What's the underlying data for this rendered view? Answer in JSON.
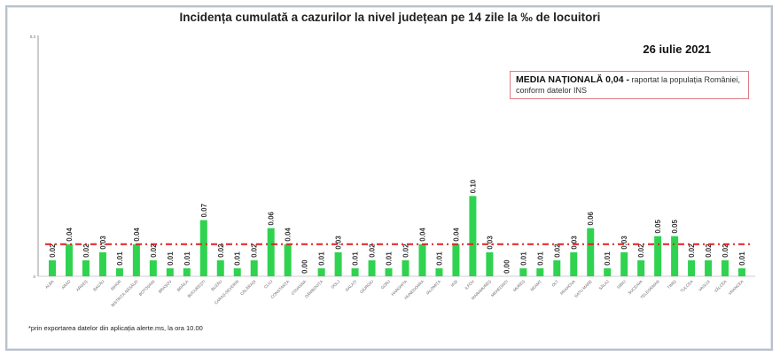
{
  "chart_data": {
    "type": "bar",
    "title": "Incidența cumulată a cazurilor la nivel județean pe 14 zile   la ‰ de locuitori",
    "date": "26 iulie 2021",
    "legend": {
      "bold": "MEDIA NAȚIONALĂ 0,04 -",
      "text": "raportat la populația României, conform datelor INS"
    },
    "footnote": "*prin exportarea datelor din aplicația alerte.ms, la ora 10.00",
    "xlabel": "",
    "ylabel": "",
    "ylim": [
      0,
      0.3
    ],
    "ytick_labels": [
      "0",
      "0,3"
    ],
    "reference_line": {
      "value": 0.04,
      "color": "#e02020",
      "label": "media națională"
    },
    "bar_color": "#2fd34f",
    "categories": [
      "Alba",
      "Arad",
      "Argeș",
      "Bacău",
      "Bihor",
      "Bistrița-Năsăud",
      "Botoșani",
      "Brașov",
      "Brăila",
      "București",
      "Buzău",
      "Caraș-Severin",
      "Călărași",
      "Cluj",
      "Constanța",
      "Covasna",
      "Dâmbovița",
      "Dolj",
      "Galați",
      "Giurgiu",
      "Gorj",
      "Harghita",
      "Hunedoara",
      "Ialomița",
      "Iași",
      "Ilfov",
      "Maramureș",
      "Mehedinți",
      "Mureș",
      "Neamț",
      "Olt",
      "Prahova",
      "Satu Mare",
      "Sălaj",
      "Sibiu",
      "Suceava",
      "Teleorman",
      "Timiș",
      "Tulcea",
      "Vaslui",
      "Vâlcea",
      "Vrancea"
    ],
    "values": [
      0.02,
      0.04,
      0.02,
      0.03,
      0.01,
      0.04,
      0.02,
      0.01,
      0.01,
      0.07,
      0.02,
      0.01,
      0.02,
      0.06,
      0.04,
      0.0,
      0.01,
      0.03,
      0.01,
      0.02,
      0.01,
      0.02,
      0.04,
      0.01,
      0.04,
      0.1,
      0.03,
      0.0,
      0.01,
      0.01,
      0.02,
      0.03,
      0.06,
      0.01,
      0.03,
      0.02,
      0.05,
      0.05,
      0.02,
      0.02,
      0.02,
      0.01
    ]
  }
}
